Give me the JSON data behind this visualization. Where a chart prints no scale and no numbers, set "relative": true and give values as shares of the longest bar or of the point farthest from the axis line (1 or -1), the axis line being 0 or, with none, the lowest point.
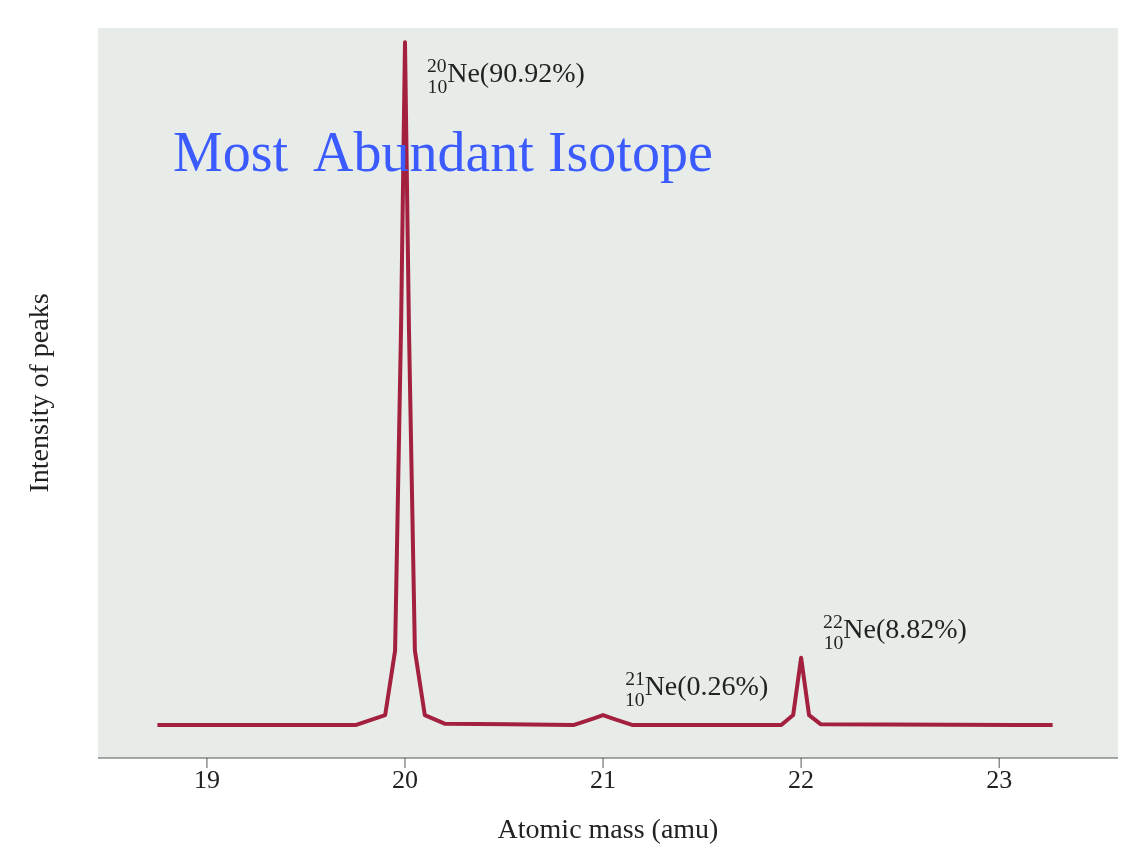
{
  "chart_data": {
    "type": "line",
    "relative": true,
    "xlabel": "Atomic mass (amu)",
    "ylabel": "Intensity of peaks",
    "x": [
      18.75,
      19.75,
      19.9,
      19.95,
      19.98,
      20.0,
      20.02,
      20.05,
      20.1,
      20.2,
      20.85,
      20.95,
      21.0,
      21.05,
      21.15,
      21.9,
      21.96,
      22.0,
      22.04,
      22.1,
      23.27
    ],
    "series": [
      {
        "color": "#a3213f",
        "values": [
          0.046,
          0.046,
          0.06,
          0.15,
          0.6,
          1.0,
          0.6,
          0.15,
          0.06,
          0.048,
          0.046,
          0.055,
          0.06,
          0.055,
          0.046,
          0.046,
          0.06,
          0.14,
          0.06,
          0.047,
          0.046
        ]
      }
    ],
    "xlim": [
      18.45,
      23.6
    ],
    "xticks": [
      19,
      20,
      21,
      22,
      23
    ],
    "marker": "none",
    "line_style": "solid",
    "annotations": [
      {
        "text": "$^{20}$$_{10}$Ne(90.92%)",
        "x": 20,
        "y": 1.0
      },
      {
        "text": "$^{21}$$_{10}$Ne(0.26%)",
        "x": 21,
        "y": 0.06
      },
      {
        "text": "$^{22}$$_{10}$Ne(8.82%)",
        "x": 22,
        "y": 0.14
      },
      "Most  Abundant Isotope"
    ]
  }
}
